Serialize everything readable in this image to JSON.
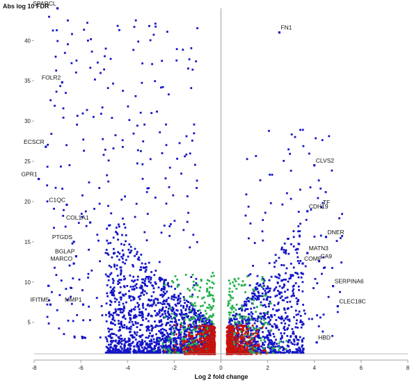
{
  "chart_data": {
    "type": "scatter",
    "title": "",
    "xlabel": "Log 2 fold change",
    "ylabel": "Abs log 10 FDR",
    "xlim": [
      -8,
      8
    ],
    "ylim": [
      1,
      44
    ],
    "xticks": [
      -8,
      -6,
      -4,
      -2,
      0,
      2,
      4,
      6,
      8
    ],
    "yticks": [
      5,
      10,
      15,
      20,
      25,
      30,
      35,
      40
    ],
    "grid": false,
    "legend": "none",
    "colors": {
      "significant": "#1414c8",
      "intermediate": "#22b24c",
      "nonsignificant": "#c8100c",
      "axis": "#a0a0a0"
    },
    "labeled_points": [
      {
        "gene": "SPARCL",
        "x": -7.0,
        "y": 44.0
      },
      {
        "gene": "FN1",
        "x": 2.5,
        "y": 41.0
      },
      {
        "gene": "FOLR2",
        "x": -6.8,
        "y": 34.8
      },
      {
        "gene": "ECSCR",
        "x": -7.5,
        "y": 26.8
      },
      {
        "gene": "CLVS2",
        "x": 4.0,
        "y": 24.5
      },
      {
        "gene": "GPR1",
        "x": -7.8,
        "y": 22.8
      },
      {
        "gene": "C1QC",
        "x": -6.6,
        "y": 19.6
      },
      {
        "gene": "TF",
        "x": 4.3,
        "y": 19.3
      },
      {
        "gene": "CDH19",
        "x": 3.7,
        "y": 18.8
      },
      {
        "gene": "COL1A1",
        "x": -5.6,
        "y": 17.4
      },
      {
        "gene": "DNER",
        "x": 4.5,
        "y": 15.6
      },
      {
        "gene": "PTGDS",
        "x": -6.3,
        "y": 15.0
      },
      {
        "gene": "MATN3",
        "x": 3.7,
        "y": 13.6
      },
      {
        "gene": "BGLAP",
        "x": -6.2,
        "y": 13.2
      },
      {
        "gene": "CA9",
        "x": 4.2,
        "y": 12.6
      },
      {
        "gene": "MARCO",
        "x": -6.3,
        "y": 12.3
      },
      {
        "gene": "COMP",
        "x": 3.5,
        "y": 12.3
      },
      {
        "gene": "SERPINA6",
        "x": 4.8,
        "y": 9.5
      },
      {
        "gene": "IFITM5",
        "x": -7.3,
        "y": 7.2
      },
      {
        "gene": "MMP1",
        "x": -5.9,
        "y": 7.2
      },
      {
        "gene": "CLEC18C",
        "x": 5.0,
        "y": 7.0
      },
      {
        "gene": "HBD",
        "x": 4.1,
        "y": 2.5
      }
    ]
  }
}
